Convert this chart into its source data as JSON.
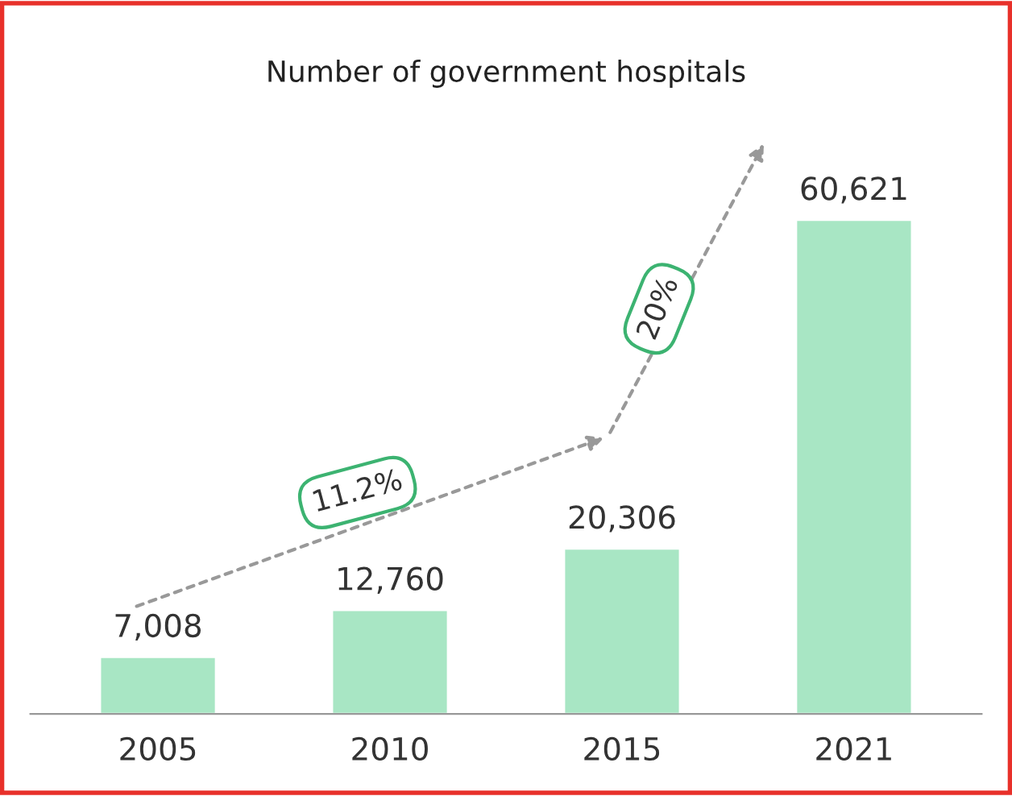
{
  "chart_data": {
    "type": "bar",
    "title": "Number of government hospitals",
    "categories": [
      "2005",
      "2010",
      "2015",
      "2021"
    ],
    "values": [
      7008,
      12760,
      20306,
      60621
    ],
    "value_labels": [
      "7,008",
      "12,760",
      "20,306",
      "60,621"
    ],
    "color": "#a8e6c4",
    "annotations": [
      "11.2%",
      "20%"
    ]
  }
}
